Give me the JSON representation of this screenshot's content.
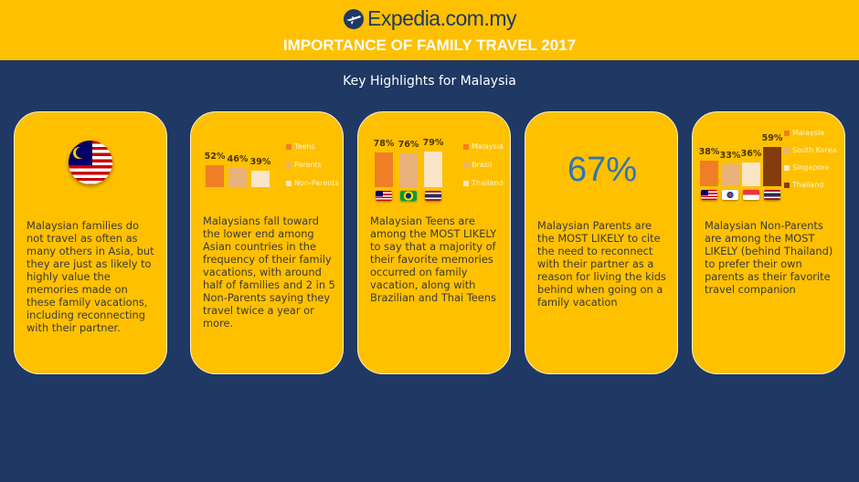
{
  "header": {
    "logo_text": "Expedia.com.my",
    "title": "IMPORTANCE OF FAMILY TRAVEL 2017",
    "subtitle": "Key Highlights  for Malaysia"
  },
  "colors": {
    "background": "#1f3864",
    "card": "#ffc000",
    "header": "#ffc000"
  },
  "cards": [
    {
      "icon": "malaysia-flag-icon",
      "text": "Malaysian families do not travel as often as many others in Asia, but they are just as likely to highly value the memories made on these family vacations, including reconnecting with their partner."
    },
    {
      "text": "Malaysians fall toward the lower end among Asian countries in the frequency of their family vacations, with around half of families and 2 in 5 Non-Parents saying they travel twice a year or more."
    },
    {
      "text": "Malaysian Teens are among the MOST LIKELY to say that a majority of their favorite memories occurred on family vacation, along with Brazilian and Thai Teens"
    },
    {
      "big_stat": "67%",
      "text": "Malaysian Parents are the MOST LIKELY to cite the need to reconnect with their partner as a reason for living the kids behind when going on a family vacation"
    },
    {
      "text": "Malaysian Non-Parents are among the MOST LIKELY (behind Thailand) to prefer their own parents as their favorite travel companion"
    }
  ],
  "chart_data": [
    {
      "type": "bar",
      "legend": "right",
      "categories": [
        "Teens",
        "Parents",
        "Non-Parents"
      ],
      "values": [
        52,
        46,
        39
      ],
      "labels": [
        "52%",
        "46%",
        "39%"
      ],
      "colors": [
        "#f07e26",
        "#e8b27a",
        "#fbe5c8"
      ]
    },
    {
      "type": "bar",
      "legend": "right",
      "categories": [
        "Malaysia",
        "Brazil",
        "Thailand"
      ],
      "values": [
        78,
        76,
        79
      ],
      "labels": [
        "78%",
        "76%",
        "79%"
      ],
      "colors": [
        "#f07e26",
        "#e8b27a",
        "#fbe5c8"
      ],
      "flags": [
        "malaysia",
        "brazil",
        "thailand"
      ]
    },
    {
      "type": "bar",
      "legend": "right",
      "categories": [
        "Malaysia",
        "South Korea",
        "Singapore",
        "Thailand"
      ],
      "values": [
        38,
        33,
        36,
        59
      ],
      "labels": [
        "38%",
        "33%",
        "36%",
        "59%"
      ],
      "colors": [
        "#f07e26",
        "#e8b27a",
        "#fbe5c8",
        "#843c0c"
      ],
      "flags": [
        "malaysia",
        "south-korea",
        "singapore",
        "thailand"
      ]
    }
  ]
}
